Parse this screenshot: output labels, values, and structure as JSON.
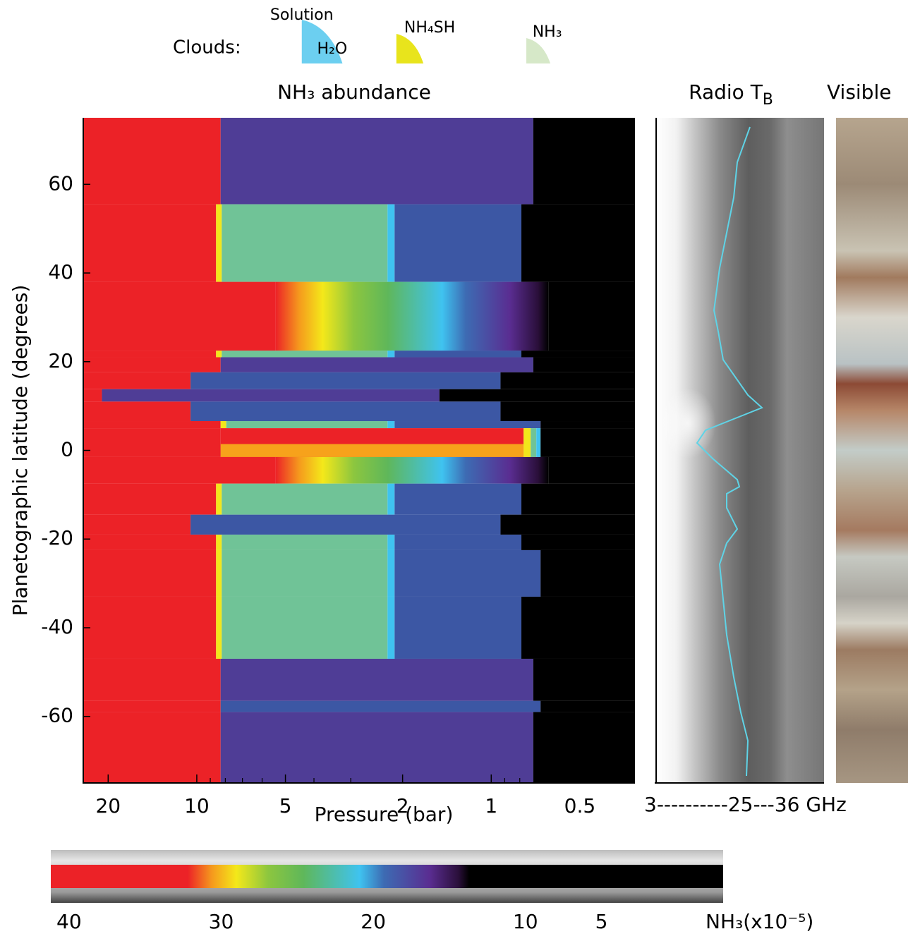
{
  "chart_data": {
    "type": "bands",
    "title": "NH₃ abundance",
    "xlabel": "Pressure (bar)",
    "ylabel": "Planetographic latitude (degrees)",
    "xscale": "log",
    "xlim": [
      24.3,
      0.325
    ],
    "ylim": [
      -75,
      75
    ],
    "xticks": [
      20,
      10,
      5,
      2,
      1,
      0.5
    ],
    "xminorticks": [
      9,
      8,
      7,
      6,
      4,
      3,
      0.9,
      0.8,
      0.7,
      0.6
    ],
    "yticks": [
      -60,
      -40,
      -20,
      0,
      20,
      40,
      60
    ],
    "colors": {
      "red": "#ec2227",
      "purple": "#4f3d96",
      "blue": "#3c57a4",
      "green": "#70c397",
      "yellow": "#f2e61b",
      "cyan": "#3fc3f0",
      "orange": "#f7a21b",
      "black": "#000000"
    },
    "bands": [
      {
        "lat": [
          75,
          55.5
        ],
        "kind": "purple",
        "start": 8.3,
        "end": 0.72
      },
      {
        "lat": [
          55.5,
          38
        ],
        "kind": "green",
        "start": 8.6,
        "mid": 2.25,
        "end": 0.79
      },
      {
        "lat": [
          38,
          22.5
        ],
        "kind": "gradient",
        "start": 5.4,
        "end": 0.64
      },
      {
        "lat": [
          22.5,
          21
        ],
        "kind": "green",
        "start": 8.6,
        "mid": 2.25,
        "end": 0.79
      },
      {
        "lat": [
          21,
          17.6
        ],
        "kind": "purple",
        "start": 8.3,
        "end": 0.72
      },
      {
        "lat": [
          17.6,
          13.8
        ],
        "kind": "blue",
        "start": 10.5,
        "end": 0.93
      },
      {
        "lat": [
          13.8,
          11
        ],
        "kind": "purple",
        "start": 21,
        "end": 1.5
      },
      {
        "lat": [
          11,
          6.6
        ],
        "kind": "blue",
        "start": 10.5,
        "end": 0.93
      },
      {
        "lat": [
          6.6,
          5
        ],
        "kind": "green",
        "start": 8.3,
        "mid": 2.25,
        "end": 0.68
      },
      {
        "lat": [
          5,
          -1.5
        ],
        "kind": "equator",
        "start": 8.3,
        "end": 0.68
      },
      {
        "lat": [
          -1.5,
          -7.5
        ],
        "kind": "gradient",
        "start": 5.4,
        "end": 0.64
      },
      {
        "lat": [
          -7.5,
          -14.5
        ],
        "kind": "green",
        "start": 8.6,
        "mid": 2.25,
        "end": 0.79
      },
      {
        "lat": [
          -14.5,
          -19
        ],
        "kind": "blue",
        "start": 10.5,
        "end": 0.93
      },
      {
        "lat": [
          -19,
          -22.5
        ],
        "kind": "green",
        "start": 8.6,
        "mid": 2.25,
        "end": 0.79
      },
      {
        "lat": [
          -22.5,
          -33
        ],
        "kind": "green",
        "start": 8.6,
        "mid": 2.25,
        "end": 0.68
      },
      {
        "lat": [
          -33,
          -47
        ],
        "kind": "green",
        "start": 8.6,
        "mid": 2.25,
        "end": 0.79
      },
      {
        "lat": [
          -47,
          -56.5
        ],
        "kind": "purple",
        "start": 8.3,
        "end": 0.72
      },
      {
        "lat": [
          -56.5,
          -59
        ],
        "kind": "blue",
        "start": 8.3,
        "end": 0.68
      },
      {
        "lat": [
          -59,
          -75
        ],
        "kind": "purple",
        "start": 8.3,
        "end": 0.72
      }
    ],
    "clouds_label": "Clouds:",
    "clouds": [
      {
        "label": "H₂O",
        "note": "Solution",
        "base": 4.4,
        "top": 3.2,
        "color": "#6ccff0"
      },
      {
        "label": "NH₄SH",
        "base": 2.1,
        "top": 1.7,
        "color": "#e8e41c"
      },
      {
        "label": "NH₃",
        "base": 0.76,
        "top": 0.63,
        "color": "#d6e8c8"
      }
    ],
    "radio_title": "Radio T",
    "radio_title_sub": "B",
    "radio_axis": "3----------25---36 GHz",
    "visible_title": "Visible",
    "colorbar": {
      "lim": [
        41.2,
        -3
      ],
      "ticks": [
        40,
        30,
        20,
        10,
        5
      ],
      "unit": "NH₃(x10⁻⁵)",
      "stops": [
        {
          "value": 32.2,
          "color": "#ec2227"
        },
        {
          "value": 30.6,
          "color": "#f59a1d"
        },
        {
          "value": 29,
          "color": "#f4e81a"
        },
        {
          "value": 26.9,
          "color": "#8cc63f"
        },
        {
          "value": 24.6,
          "color": "#5fb75a"
        },
        {
          "value": 20.9,
          "color": "#3fc3f0"
        },
        {
          "value": 19.3,
          "color": "#3d6bb3"
        },
        {
          "value": 16.3,
          "color": "#5a2d91"
        },
        {
          "value": 14.4,
          "color": "#2a0f3a"
        },
        {
          "value": 13.7,
          "color": "#000000"
        }
      ]
    }
  }
}
